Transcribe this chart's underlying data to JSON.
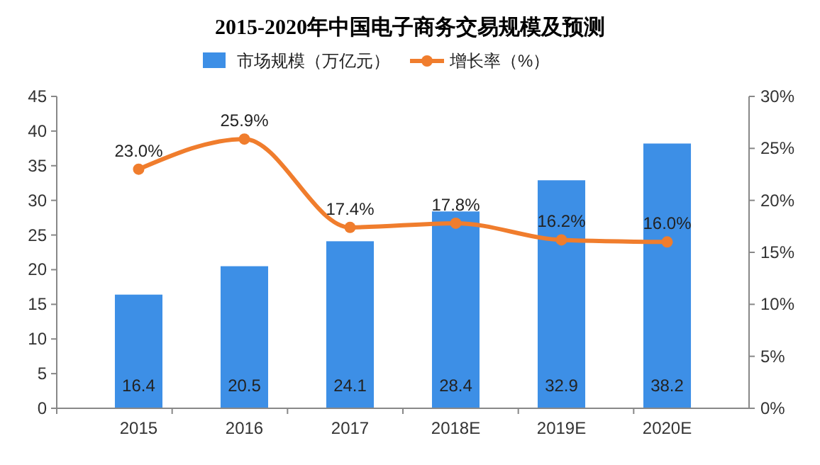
{
  "chart_data": {
    "type": "bar",
    "title": "2015-2020年中国电子商务交易规模及预测",
    "categories": [
      "2015",
      "2016",
      "2017",
      "2018E",
      "2019E",
      "2020E"
    ],
    "series": [
      {
        "name": "市场规模（万亿元）",
        "color": "#3d8fe6",
        "values": [
          16.4,
          20.5,
          24.1,
          28.4,
          32.9,
          38.2
        ],
        "value_labels": [
          "16.4",
          "20.5",
          "24.1",
          "28.4",
          "32.9",
          "38.2"
        ]
      },
      {
        "name": "增长率（%）",
        "type": "line",
        "axis": "y2",
        "color": "#f07d2d",
        "marker": "circle",
        "values": [
          23.0,
          25.9,
          17.4,
          17.8,
          16.2,
          16.0
        ],
        "value_labels": [
          "23.0%",
          "25.9%",
          "17.4%",
          "17.8%",
          "16.2%",
          "16.0%"
        ]
      }
    ],
    "ylim": [
      0,
      45
    ],
    "yticks": [
      0,
      5,
      10,
      15,
      20,
      25,
      30,
      35,
      40,
      45
    ],
    "y2lim": [
      0,
      30
    ],
    "y2ticks": [
      {
        "value": 0,
        "label": "0%"
      },
      {
        "value": 5,
        "label": "5%"
      },
      {
        "value": 10,
        "label": "10%"
      },
      {
        "value": 15,
        "label": "15%"
      },
      {
        "value": 20,
        "label": "20%"
      },
      {
        "value": 25,
        "label": "25%"
      },
      {
        "value": 30,
        "label": "30%"
      }
    ],
    "legend": "top",
    "grid": false
  }
}
